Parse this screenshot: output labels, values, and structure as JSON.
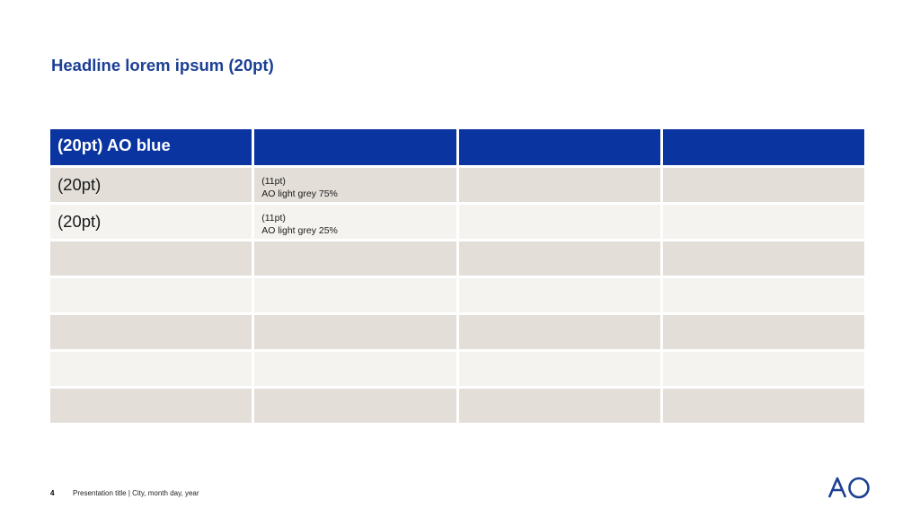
{
  "headline": "Headline lorem ipsum (20pt)",
  "table": {
    "header": [
      "(20pt) AO blue",
      "",
      "",
      ""
    ],
    "rows": [
      {
        "style": "dark",
        "cells": [
          {
            "type": "big",
            "text": "(20pt)"
          },
          {
            "type": "small",
            "lines": [
              "(11pt)",
              "AO light grey 75%"
            ]
          },
          {
            "type": "empty"
          },
          {
            "type": "empty"
          }
        ]
      },
      {
        "style": "light",
        "cells": [
          {
            "type": "big",
            "text": "(20pt)"
          },
          {
            "type": "small",
            "lines": [
              "(11pt)",
              "AO light grey 25%"
            ]
          },
          {
            "type": "empty"
          },
          {
            "type": "empty"
          }
        ]
      },
      {
        "style": "dark",
        "cells": [
          {
            "type": "empty"
          },
          {
            "type": "empty"
          },
          {
            "type": "empty"
          },
          {
            "type": "empty"
          }
        ]
      },
      {
        "style": "light",
        "cells": [
          {
            "type": "empty"
          },
          {
            "type": "empty"
          },
          {
            "type": "empty"
          },
          {
            "type": "empty"
          }
        ]
      },
      {
        "style": "dark",
        "cells": [
          {
            "type": "empty"
          },
          {
            "type": "empty"
          },
          {
            "type": "empty"
          },
          {
            "type": "empty"
          }
        ]
      },
      {
        "style": "light",
        "cells": [
          {
            "type": "empty"
          },
          {
            "type": "empty"
          },
          {
            "type": "empty"
          },
          {
            "type": "empty"
          }
        ]
      },
      {
        "style": "dark",
        "cells": [
          {
            "type": "empty"
          },
          {
            "type": "empty"
          },
          {
            "type": "empty"
          },
          {
            "type": "empty"
          }
        ]
      }
    ]
  },
  "footer": {
    "page_number": "4",
    "text": "Presentation title | City, month day, year"
  },
  "logo": {
    "name": "AO",
    "color": "#1c3f94"
  },
  "colors": {
    "ao_blue": "#0a34a0",
    "light_grey_75": "#e3ded8",
    "light_grey_25": "#f4f3f0"
  }
}
